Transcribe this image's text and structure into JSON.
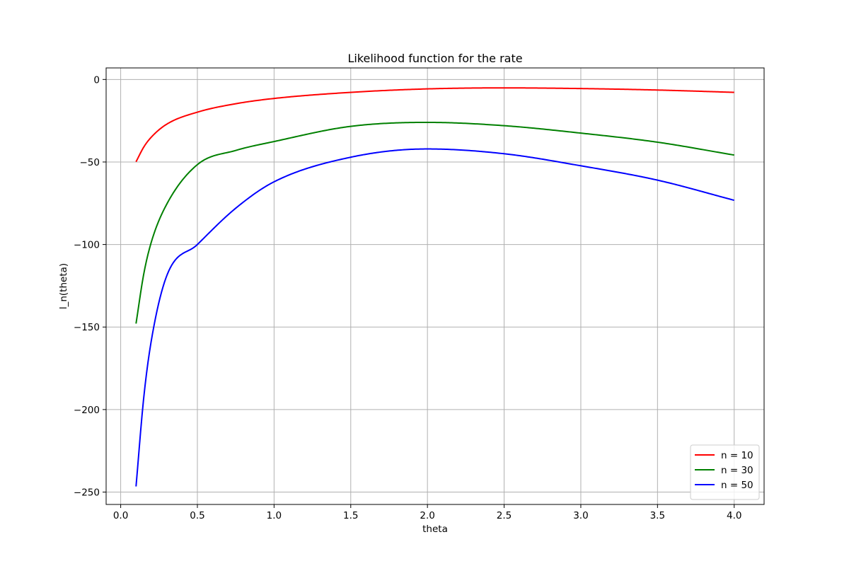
{
  "chart_data": {
    "type": "line",
    "title": "Likelihood function for the rate",
    "xlabel": "theta",
    "ylabel": "l_n(theta)",
    "xlim": [
      -0.095,
      4.195
    ],
    "ylim": [
      -257.5,
      7.0
    ],
    "xticks": [
      0.0,
      0.5,
      1.0,
      1.5,
      2.0,
      2.5,
      3.0,
      3.5,
      4.0
    ],
    "xtick_labels": [
      "0.0",
      "0.5",
      "1.0",
      "1.5",
      "2.0",
      "2.5",
      "3.0",
      "3.5",
      "4.0"
    ],
    "yticks": [
      0,
      -50,
      -100,
      -150,
      -200,
      -250
    ],
    "ytick_labels": [
      "0",
      "−50",
      "−100",
      "−150",
      "−200",
      "−250"
    ],
    "grid": true,
    "legend_position": "lower-right",
    "theta_range": [
      0.1,
      4.0
    ],
    "series": [
      {
        "name": "n = 10",
        "color": "#ff0000",
        "x": [
          0.1,
          0.15,
          0.2,
          0.3,
          0.5,
          0.75,
          1.0,
          1.5,
          2.0,
          2.5,
          3.0,
          3.5,
          4.0
        ],
        "y": [
          -49.9,
          -41.0,
          -34.9,
          -27.1,
          -19.8,
          -14.7,
          -11.5,
          -7.8,
          -5.7,
          -5.1,
          -5.5,
          -6.4,
          -7.8
        ]
      },
      {
        "name": "n = 30",
        "color": "#008000",
        "x": [
          0.1,
          0.15,
          0.2,
          0.3,
          0.5,
          0.75,
          1.0,
          1.5,
          2.0,
          2.5,
          3.0,
          3.5,
          4.0
        ],
        "y": [
          -147.9,
          -118.0,
          -98.4,
          -75.6,
          -51.6,
          -43.0,
          -37.6,
          -28.4,
          -26.0,
          -28.0,
          -32.5,
          -38.0,
          -45.8
        ]
      },
      {
        "name": "n = 50",
        "color": "#0000ff",
        "x": [
          0.1,
          0.15,
          0.2,
          0.3,
          0.5,
          0.75,
          1.0,
          1.5,
          2.0,
          2.5,
          3.0,
          3.5,
          4.0
        ],
        "y": [
          -246.6,
          -193.0,
          -158.0,
          -119.0,
          -100.0,
          -78.0,
          -62.0,
          -47.1,
          -42.1,
          -45.0,
          -52.3,
          -61.0,
          -73.2
        ]
      }
    ]
  }
}
